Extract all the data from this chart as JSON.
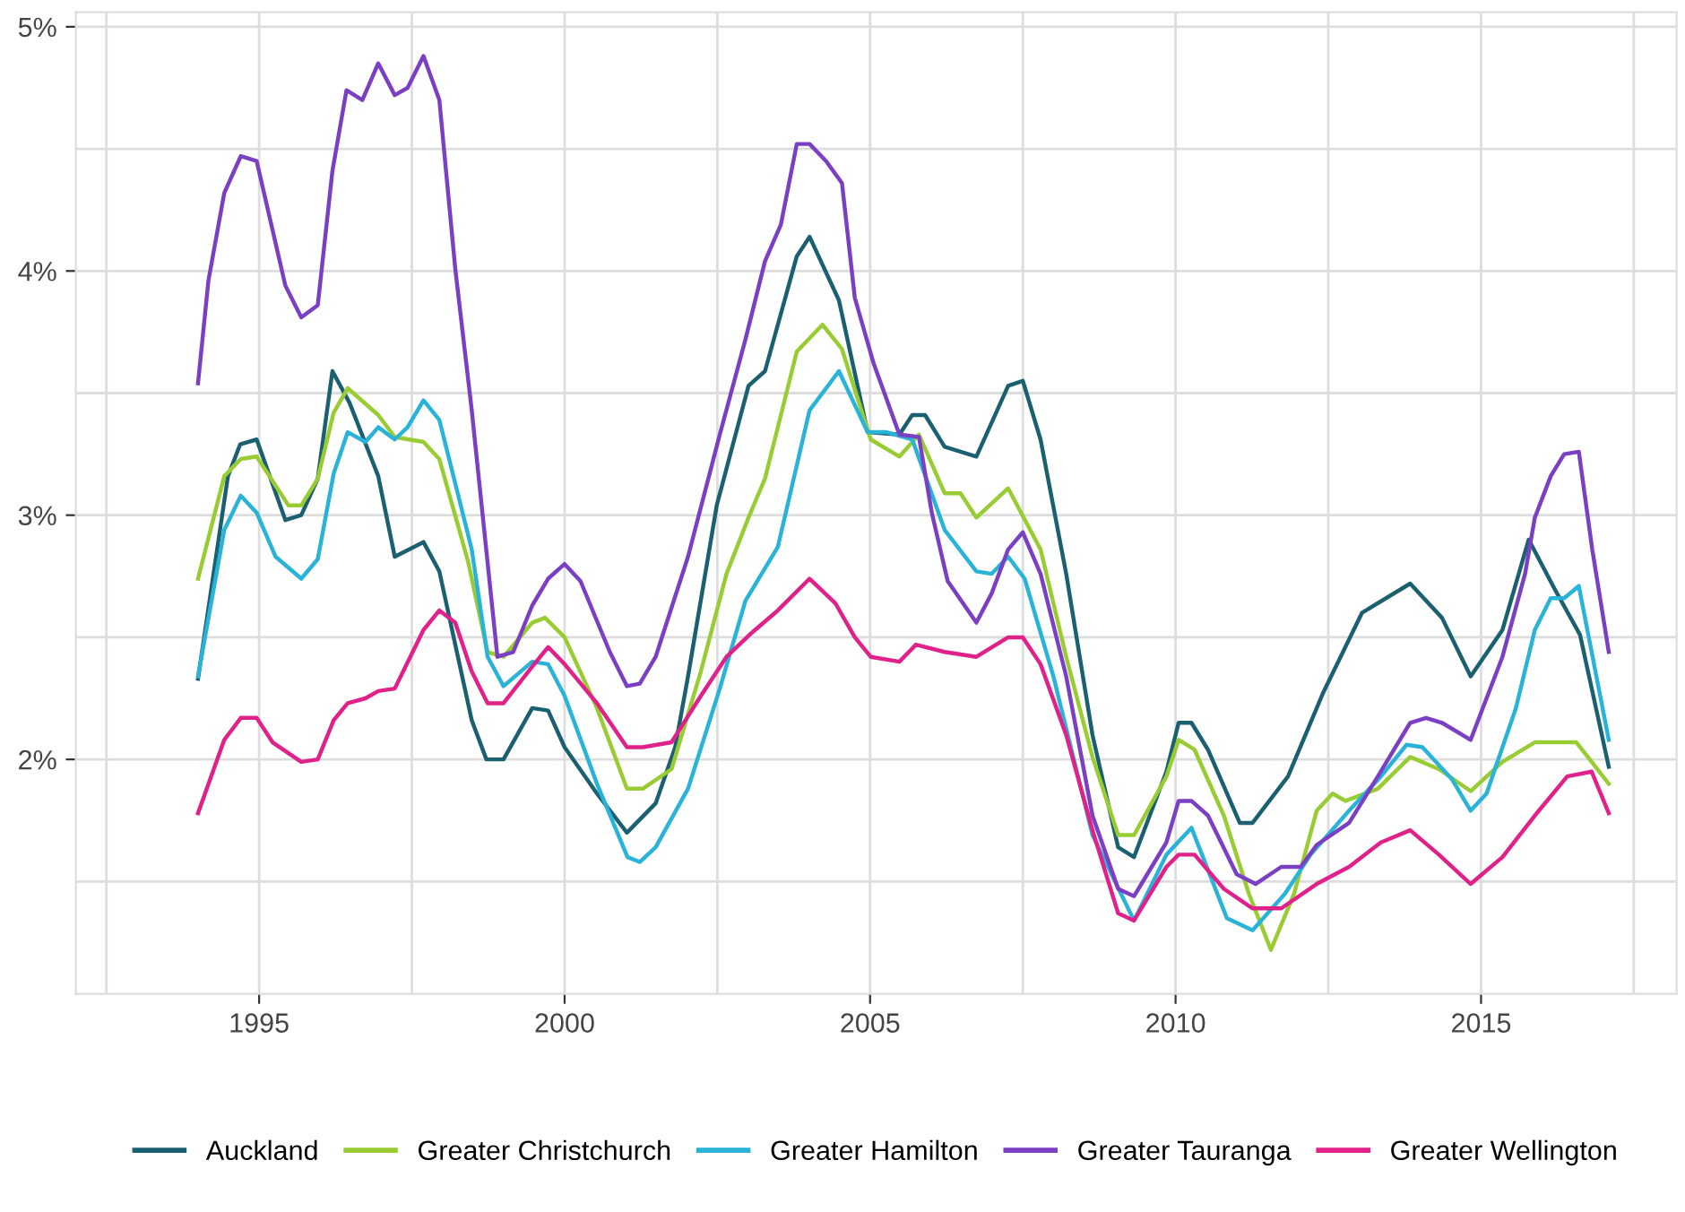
{
  "chart_data": {
    "type": "line",
    "xlim": [
      1992.0,
      2018.2
    ],
    "ylim": [
      1.04,
      5.06
    ],
    "xticks": [
      {
        "value": 1992.5,
        "label": null
      },
      1995,
      {
        "value": 1997.5,
        "label": null
      },
      2000,
      {
        "value": 2002.5,
        "label": null
      },
      2005,
      {
        "value": 2007.5,
        "label": null
      },
      2010,
      {
        "value": 2012.5,
        "label": null
      },
      2015,
      {
        "value": 2017.5,
        "label": null
      }
    ],
    "yticks": [
      {
        "value": 1.5,
        "label": null
      },
      {
        "value": 2,
        "label": "2%"
      },
      {
        "value": 2.5,
        "label": null
      },
      {
        "value": 3,
        "label": "3%"
      },
      {
        "value": 3.5,
        "label": null
      },
      {
        "value": 4,
        "label": "4%"
      },
      {
        "value": 4.5,
        "label": null
      },
      {
        "value": 5,
        "label": "5%"
      }
    ],
    "grid": true,
    "legend": "bottom",
    "line_style": "solid",
    "marker": "none",
    "series": [
      {
        "name": "Auckland",
        "color": "#1b6070",
        "x": [
          1994.0,
          1994.49,
          1994.69,
          1994.96,
          1995.43,
          1995.69,
          1995.96,
          1996.2,
          1996.48,
          1996.95,
          1997.22,
          1997.69,
          1997.95,
          1998.48,
          1998.72,
          1999.0,
          1999.47,
          1999.73,
          2000.0,
          2000.53,
          2001.02,
          2001.49,
          2001.81,
          2002.02,
          2002.49,
          2003.01,
          2003.28,
          2003.8,
          2004.01,
          2004.49,
          2004.96,
          2005.48,
          2005.69,
          2005.9,
          2006.22,
          2006.74,
          2007.26,
          2007.5,
          2007.79,
          2008.21,
          2008.64,
          2009.06,
          2009.32,
          2009.85,
          2010.05,
          2010.26,
          2010.53,
          2011.05,
          2011.26,
          2011.84,
          2012.41,
          2013.05,
          2013.84,
          2014.36,
          2014.83,
          2015.35,
          2015.78,
          2016.2,
          2016.62,
          2017.09
        ],
        "values": [
          2.33,
          3.16,
          3.29,
          3.31,
          2.98,
          3.0,
          3.15,
          3.59,
          3.46,
          3.16,
          2.83,
          2.89,
          2.77,
          2.16,
          2.0,
          2.0,
          2.21,
          2.2,
          2.05,
          1.86,
          1.7,
          1.82,
          2.05,
          2.34,
          3.04,
          3.53,
          3.59,
          4.06,
          4.14,
          3.88,
          3.34,
          3.33,
          3.41,
          3.41,
          3.28,
          3.24,
          3.53,
          3.55,
          3.31,
          2.76,
          2.1,
          1.64,
          1.6,
          1.95,
          2.15,
          2.15,
          2.04,
          1.74,
          1.74,
          1.93,
          2.27,
          2.6,
          2.72,
          2.58,
          2.34,
          2.53,
          2.9,
          2.7,
          2.51,
          1.97
        ]
      },
      {
        "name": "Greater Christchurch",
        "color": "#99cc33",
        "x": [
          1994.0,
          1994.43,
          1994.7,
          1994.96,
          1995.48,
          1995.69,
          1995.96,
          1996.22,
          1996.45,
          1996.95,
          1997.22,
          1997.69,
          1997.95,
          1998.42,
          1998.74,
          1999.0,
          1999.47,
          1999.68,
          2000.0,
          2000.53,
          2001.02,
          2001.28,
          2001.75,
          2002.23,
          2002.65,
          2003.01,
          2003.28,
          2003.8,
          2004.22,
          2004.54,
          2005.01,
          2005.48,
          2005.8,
          2006.22,
          2006.48,
          2006.74,
          2007.26,
          2007.79,
          2008.21,
          2008.64,
          2009.06,
          2009.32,
          2009.85,
          2010.05,
          2010.31,
          2010.79,
          2011.2,
          2011.56,
          2011.94,
          2012.31,
          2012.57,
          2012.78,
          2013.31,
          2013.84,
          2014.31,
          2014.83,
          2015.35,
          2015.88,
          2016.56,
          2017.09
        ],
        "values": [
          2.74,
          3.16,
          3.23,
          3.24,
          3.04,
          3.04,
          3.15,
          3.42,
          3.52,
          3.41,
          3.32,
          3.3,
          3.23,
          2.81,
          2.44,
          2.42,
          2.56,
          2.58,
          2.5,
          2.21,
          1.88,
          1.88,
          1.96,
          2.36,
          2.76,
          2.99,
          3.15,
          3.67,
          3.78,
          3.68,
          3.31,
          3.24,
          3.33,
          3.09,
          3.09,
          2.99,
          3.11,
          2.86,
          2.42,
          2.01,
          1.69,
          1.69,
          1.93,
          2.08,
          2.04,
          1.77,
          1.45,
          1.22,
          1.45,
          1.79,
          1.86,
          1.83,
          1.88,
          2.01,
          1.96,
          1.87,
          1.99,
          2.07,
          2.07,
          1.9
        ]
      },
      {
        "name": "Greater Hamilton",
        "color": "#29b3d9",
        "x": [
          1994.0,
          1994.43,
          1994.7,
          1994.96,
          1995.27,
          1995.69,
          1995.96,
          1996.22,
          1996.45,
          1996.74,
          1996.95,
          1997.22,
          1997.43,
          1997.69,
          1997.95,
          1998.48,
          1998.74,
          1999.0,
          1999.47,
          1999.73,
          2000.0,
          2000.53,
          2001.03,
          2001.23,
          2001.49,
          2002.02,
          2002.54,
          2002.96,
          2003.49,
          2004.01,
          2004.49,
          2004.96,
          2005.27,
          2005.69,
          2006.22,
          2006.74,
          2006.99,
          2007.26,
          2007.53,
          2008.0,
          2008.64,
          2009.32,
          2009.85,
          2010.26,
          2010.84,
          2011.26,
          2011.79,
          2012.21,
          2012.84,
          2013.36,
          2013.78,
          2014.04,
          2014.52,
          2014.83,
          2015.09,
          2015.57,
          2015.88,
          2016.14,
          2016.36,
          2016.6,
          2017.09
        ],
        "values": [
          2.34,
          2.94,
          3.08,
          3.01,
          2.83,
          2.74,
          2.82,
          3.17,
          3.34,
          3.3,
          3.36,
          3.31,
          3.36,
          3.47,
          3.39,
          2.86,
          2.42,
          2.3,
          2.4,
          2.39,
          2.26,
          1.9,
          1.6,
          1.58,
          1.64,
          1.88,
          2.29,
          2.65,
          2.87,
          3.43,
          3.59,
          3.34,
          3.34,
          3.31,
          2.94,
          2.77,
          2.76,
          2.83,
          2.74,
          2.34,
          1.69,
          1.34,
          1.61,
          1.72,
          1.35,
          1.3,
          1.45,
          1.61,
          1.79,
          1.93,
          2.06,
          2.05,
          1.92,
          1.79,
          1.86,
          2.21,
          2.53,
          2.66,
          2.66,
          2.71,
          2.08
        ]
      },
      {
        "name": "Greater Tauranga",
        "color": "#7b3fc4",
        "x": [
          1994.0,
          1994.17,
          1994.43,
          1994.7,
          1994.96,
          1995.43,
          1995.69,
          1995.96,
          1996.2,
          1996.43,
          1996.69,
          1996.95,
          1997.22,
          1997.43,
          1997.69,
          1997.95,
          1998.21,
          1998.48,
          1998.9,
          1999.16,
          1999.47,
          1999.73,
          2000.0,
          2000.26,
          2000.74,
          2001.02,
          2001.23,
          2001.49,
          2002.02,
          2002.54,
          2002.96,
          2003.28,
          2003.54,
          2003.8,
          2004.01,
          2004.28,
          2004.54,
          2004.75,
          2005.06,
          2005.48,
          2005.8,
          2006.01,
          2006.27,
          2006.74,
          2006.99,
          2007.26,
          2007.5,
          2007.79,
          2008.21,
          2008.64,
          2009.06,
          2009.32,
          2009.85,
          2010.05,
          2010.26,
          2010.53,
          2011.0,
          2011.31,
          2011.73,
          2012.05,
          2012.31,
          2012.84,
          2013.31,
          2013.84,
          2014.1,
          2014.36,
          2014.83,
          2015.35,
          2015.72,
          2015.88,
          2016.14,
          2016.36,
          2016.6,
          2016.82,
          2017.09
        ],
        "values": [
          3.54,
          3.96,
          4.32,
          4.47,
          4.45,
          3.94,
          3.81,
          3.86,
          4.41,
          4.74,
          4.7,
          4.85,
          4.72,
          4.75,
          4.88,
          4.7,
          4.01,
          3.43,
          2.42,
          2.44,
          2.63,
          2.74,
          2.8,
          2.73,
          2.44,
          2.3,
          2.31,
          2.42,
          2.83,
          3.33,
          3.72,
          4.04,
          4.19,
          4.52,
          4.52,
          4.45,
          4.36,
          3.89,
          3.62,
          3.33,
          3.32,
          3.01,
          2.73,
          2.56,
          2.68,
          2.86,
          2.93,
          2.76,
          2.34,
          1.77,
          1.47,
          1.44,
          1.66,
          1.83,
          1.83,
          1.77,
          1.53,
          1.49,
          1.56,
          1.56,
          1.65,
          1.74,
          1.93,
          2.15,
          2.17,
          2.15,
          2.08,
          2.42,
          2.76,
          2.99,
          3.16,
          3.25,
          3.26,
          2.86,
          2.44
        ]
      },
      {
        "name": "Greater Wellington",
        "color": "#e0218a",
        "x": [
          1994.0,
          1994.43,
          1994.7,
          1994.96,
          1995.22,
          1995.69,
          1995.96,
          1996.22,
          1996.45,
          1996.74,
          1996.95,
          1997.22,
          1997.69,
          1997.95,
          1998.21,
          1998.48,
          1998.74,
          1999.0,
          1999.47,
          1999.73,
          2000.0,
          2000.53,
          2001.02,
          2001.28,
          2001.75,
          2002.23,
          2002.65,
          2003.07,
          2003.49,
          2004.01,
          2004.43,
          2004.75,
          2005.01,
          2005.48,
          2005.75,
          2006.22,
          2006.74,
          2007.26,
          2007.5,
          2007.79,
          2008.21,
          2008.64,
          2009.06,
          2009.32,
          2009.85,
          2010.05,
          2010.31,
          2010.79,
          2011.26,
          2011.73,
          2012.31,
          2012.84,
          2013.36,
          2013.84,
          2014.31,
          2014.83,
          2015.35,
          2015.88,
          2016.41,
          2016.81,
          2017.09
        ],
        "values": [
          1.78,
          2.08,
          2.17,
          2.17,
          2.07,
          1.99,
          2.0,
          2.16,
          2.23,
          2.25,
          2.28,
          2.29,
          2.53,
          2.61,
          2.56,
          2.36,
          2.23,
          2.23,
          2.38,
          2.46,
          2.39,
          2.23,
          2.05,
          2.05,
          2.07,
          2.26,
          2.42,
          2.52,
          2.61,
          2.74,
          2.64,
          2.5,
          2.42,
          2.4,
          2.47,
          2.44,
          2.42,
          2.5,
          2.5,
          2.39,
          2.1,
          1.71,
          1.37,
          1.34,
          1.56,
          1.61,
          1.61,
          1.47,
          1.39,
          1.39,
          1.49,
          1.56,
          1.66,
          1.71,
          1.61,
          1.49,
          1.6,
          1.77,
          1.93,
          1.95,
          1.78
        ]
      }
    ]
  }
}
